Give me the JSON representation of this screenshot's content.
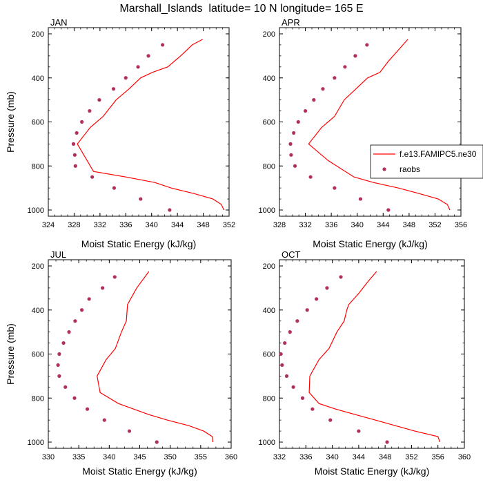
{
  "title": "Marshall_Islands  latitude= 10 N longitude= 165 E",
  "colors": {
    "model": "#ff0000",
    "obs": "#b0305a",
    "axis": "#000000",
    "background": "#ffffff"
  },
  "chart_data": [
    {
      "type": "line",
      "panel_label": "JAN",
      "xlabel": "",
      "ylabel": "Pressure (mb)",
      "xlim": [
        324,
        352
      ],
      "ylim": [
        1000,
        200
      ],
      "xticks": [
        "324",
        "328",
        "332",
        "336",
        "340",
        "344",
        "348",
        "352"
      ],
      "yticks": [
        "200",
        "400",
        "600",
        "800",
        "1000"
      ],
      "series": [
        {
          "kind": "line",
          "x": [
            351.2,
            350.8,
            349.5,
            346.5,
            343.0,
            340.5,
            336.0,
            331.0,
            328.5,
            330.5,
            332.5,
            334.5,
            336.5,
            338.3,
            340.1,
            342.5,
            344.5,
            346.3,
            347.9
          ],
          "y": [
            1000,
            975,
            950,
            925,
            900,
            875,
            850,
            825,
            700,
            625,
            575,
            500,
            450,
            400,
            375,
            350,
            300,
            250,
            225
          ]
        },
        {
          "kind": "scatter",
          "x": [
            342.8,
            338.3,
            334.2,
            330.8,
            328.2,
            328.1,
            327.9,
            328.4,
            329.2,
            330.4,
            331.9,
            334.1,
            336.0,
            337.9,
            339.5,
            341.7
          ],
          "y": [
            1000,
            950,
            900,
            850,
            800,
            750,
            700,
            650,
            600,
            550,
            500,
            450,
            400,
            350,
            300,
            250
          ]
        }
      ]
    },
    {
      "type": "line",
      "panel_label": "APR",
      "xlabel": "",
      "ylabel": "",
      "xlim": [
        328,
        356
      ],
      "ylim": [
        1000,
        200
      ],
      "xticks": [
        "328",
        "332",
        "336",
        "340",
        "344",
        "348",
        "352",
        "356"
      ],
      "yticks": [
        "200",
        "400",
        "600",
        "800",
        "1000"
      ],
      "series": [
        {
          "name": "f.e13.FAMIPC5.ne30",
          "kind": "line",
          "x": [
            354.3,
            353.9,
            352.5,
            349.5,
            346.3,
            342.5,
            339.5,
            335.5,
            332.5,
            334.5,
            336.5,
            338.0,
            339.8,
            341.6,
            343.5,
            344.8,
            346.3,
            347.8
          ],
          "y": [
            1000,
            975,
            950,
            925,
            900,
            875,
            850,
            775,
            700,
            625,
            575,
            500,
            450,
            400,
            375,
            325,
            275,
            225
          ]
        },
        {
          "name": "raobs",
          "kind": "scatter",
          "x": [
            344.8,
            340.5,
            336.5,
            332.8,
            330.4,
            329.8,
            329.7,
            330.2,
            330.9,
            332.0,
            333.3,
            334.7,
            336.5,
            338.1,
            339.7,
            341.5
          ],
          "y": [
            1000,
            950,
            900,
            850,
            800,
            750,
            700,
            650,
            600,
            550,
            500,
            450,
            400,
            350,
            300,
            250
          ]
        }
      ]
    },
    {
      "type": "line",
      "panel_label": "JUL",
      "xlabel": "Moist Static Energy (kJ/kg)",
      "ylabel": "Pressure (mb)",
      "xlim": [
        330,
        360
      ],
      "ylim": [
        1000,
        200
      ],
      "xticks": [
        "330",
        "335",
        "340",
        "345",
        "350",
        "355",
        "360"
      ],
      "yticks": [
        "200",
        "400",
        "600",
        "800",
        "1000"
      ],
      "series": [
        {
          "kind": "line",
          "x": [
            357.0,
            356.9,
            355.5,
            353.0,
            349.5,
            346.5,
            344.0,
            341.5,
            338.5,
            338.0,
            339.5,
            341.0,
            342.0,
            342.8,
            343.0,
            344.5,
            346.5
          ],
          "y": [
            1000,
            975,
            950,
            925,
            900,
            875,
            850,
            825,
            775,
            700,
            625,
            575,
            500,
            450,
            375,
            300,
            225
          ]
        },
        {
          "kind": "scatter",
          "x": [
            347.8,
            343.3,
            339.2,
            336.4,
            334.3,
            332.8,
            331.8,
            331.6,
            331.8,
            332.5,
            333.4,
            334.4,
            335.5,
            336.7,
            338.9,
            340.9
          ],
          "y": [
            1000,
            950,
            900,
            850,
            800,
            750,
            700,
            650,
            600,
            550,
            500,
            450,
            400,
            350,
            300,
            250
          ]
        }
      ]
    },
    {
      "type": "line",
      "panel_label": "OCT",
      "xlabel": "Moist Static Energy (kJ/kg)",
      "ylabel": "",
      "xlim": [
        332,
        360
      ],
      "ylim": [
        1000,
        200
      ],
      "xticks": [
        "332",
        "336",
        "340",
        "344",
        "348",
        "352",
        "356",
        "360"
      ],
      "yticks": [
        "200",
        "400",
        "600",
        "800",
        "1000"
      ],
      "series": [
        {
          "kind": "line",
          "x": [
            356.3,
            356.0,
            352.5,
            349.5,
            346.5,
            343.5,
            340.5,
            338.0,
            336.5,
            336.6,
            338.0,
            339.5,
            340.7,
            341.8,
            342.2,
            342.5,
            344.0,
            345.3,
            346.7
          ],
          "y": [
            1000,
            975,
            950,
            925,
            900,
            875,
            850,
            825,
            775,
            700,
            625,
            575,
            500,
            450,
            400,
            375,
            325,
            275,
            225
          ]
        },
        {
          "kind": "scatter",
          "x": [
            348.3,
            344.0,
            339.7,
            337.0,
            335.5,
            334.1,
            333.1,
            332.4,
            332.2,
            332.8,
            333.6,
            334.7,
            336.2,
            337.6,
            339.2,
            341.3
          ],
          "y": [
            1000,
            950,
            900,
            850,
            800,
            750,
            700,
            650,
            600,
            550,
            500,
            450,
            400,
            350,
            300,
            250
          ]
        }
      ]
    }
  ]
}
